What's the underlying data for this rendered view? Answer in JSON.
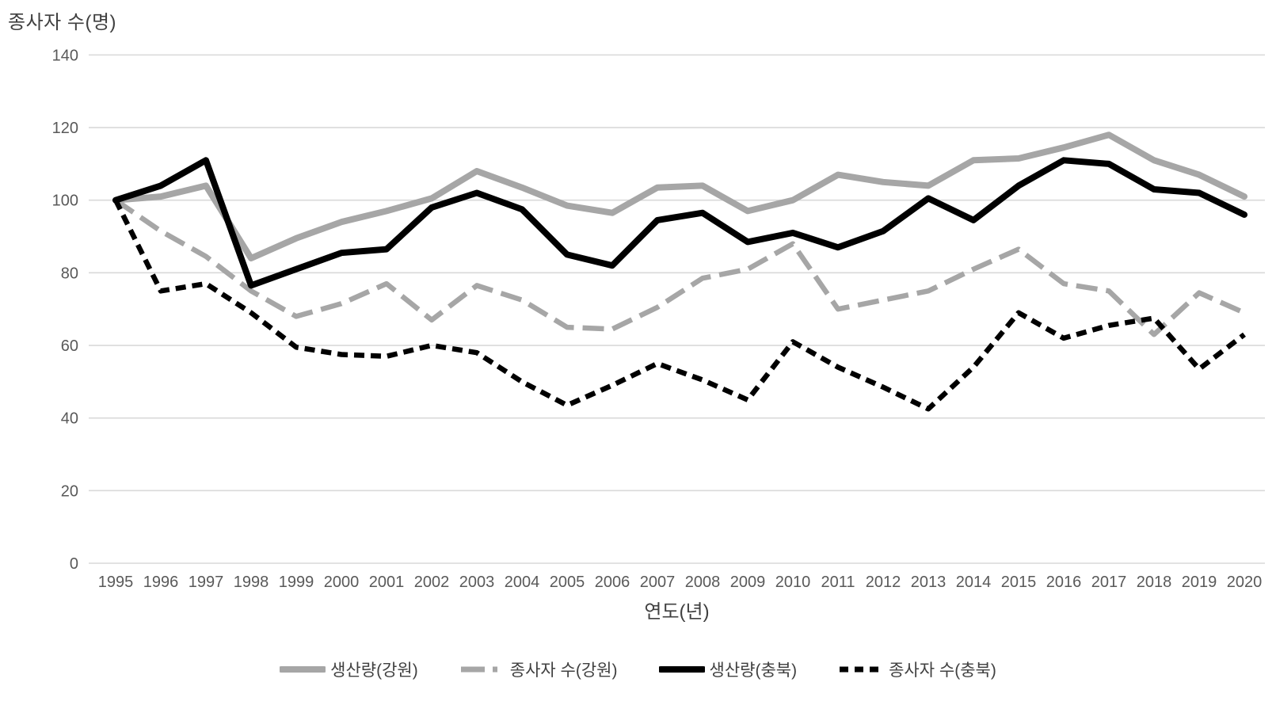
{
  "chart_data": {
    "type": "line",
    "y_axis_title": "종사자 수(명)",
    "x_axis_title": "연도(년)",
    "ylim": [
      0,
      140
    ],
    "yticks": [
      0,
      20,
      40,
      60,
      80,
      100,
      120,
      140
    ],
    "grid": "horizontal",
    "legend_position": "bottom",
    "x": [
      "1995",
      "1996",
      "1997",
      "1998",
      "1999",
      "2000",
      "2001",
      "2002",
      "2003",
      "2004",
      "2005",
      "2006",
      "2007",
      "2008",
      "2009",
      "2010",
      "2011",
      "2012",
      "2013",
      "2014",
      "2015",
      "2016",
      "2017",
      "2018",
      "2019",
      "2020"
    ],
    "series": [
      {
        "name": "생산량(강원)",
        "key": "production-gangwon",
        "color": "#a6a6a6",
        "style": "solid",
        "values": [
          100,
          101,
          104,
          84,
          89.5,
          94,
          97,
          100.5,
          108,
          103.5,
          98.5,
          96.5,
          103.5,
          104,
          97,
          100,
          107,
          105,
          104,
          111,
          111.5,
          114.5,
          118,
          111,
          107,
          101
        ]
      },
      {
        "name": "종사자 수(강원)",
        "key": "workers-gangwon",
        "color": "#a6a6a6",
        "style": "dashed-long",
        "values": [
          100,
          91.5,
          84.5,
          75,
          68,
          71.5,
          77,
          67,
          76.5,
          72.5,
          65,
          64.5,
          70.5,
          78.5,
          81,
          88,
          70,
          72.5,
          75,
          81,
          86.5,
          77,
          75,
          63,
          74.5,
          69
        ]
      },
      {
        "name": "생산량(충북)",
        "key": "production-chungbuk",
        "color": "#000000",
        "style": "solid",
        "values": [
          100,
          104,
          111,
          76.5,
          81,
          85.5,
          86.5,
          98,
          102,
          97.5,
          85,
          82,
          94.5,
          96.5,
          88.5,
          91,
          87,
          91.5,
          100.5,
          94.5,
          104,
          111,
          110,
          103,
          102,
          96
        ]
      },
      {
        "name": "종사자 수(충북)",
        "key": "workers-chungbuk",
        "color": "#000000",
        "style": "dashed-short",
        "values": [
          100,
          75,
          77,
          69,
          59.5,
          57.5,
          57,
          60,
          58,
          50,
          43.5,
          49,
          55,
          50.5,
          45,
          61,
          54,
          48.5,
          42.5,
          54,
          69,
          62,
          65.5,
          67.5,
          53.5,
          63
        ]
      }
    ],
    "colors": {
      "grid": "#d9d9d9",
      "tick_text": "#595959",
      "title_text": "#404040"
    }
  }
}
